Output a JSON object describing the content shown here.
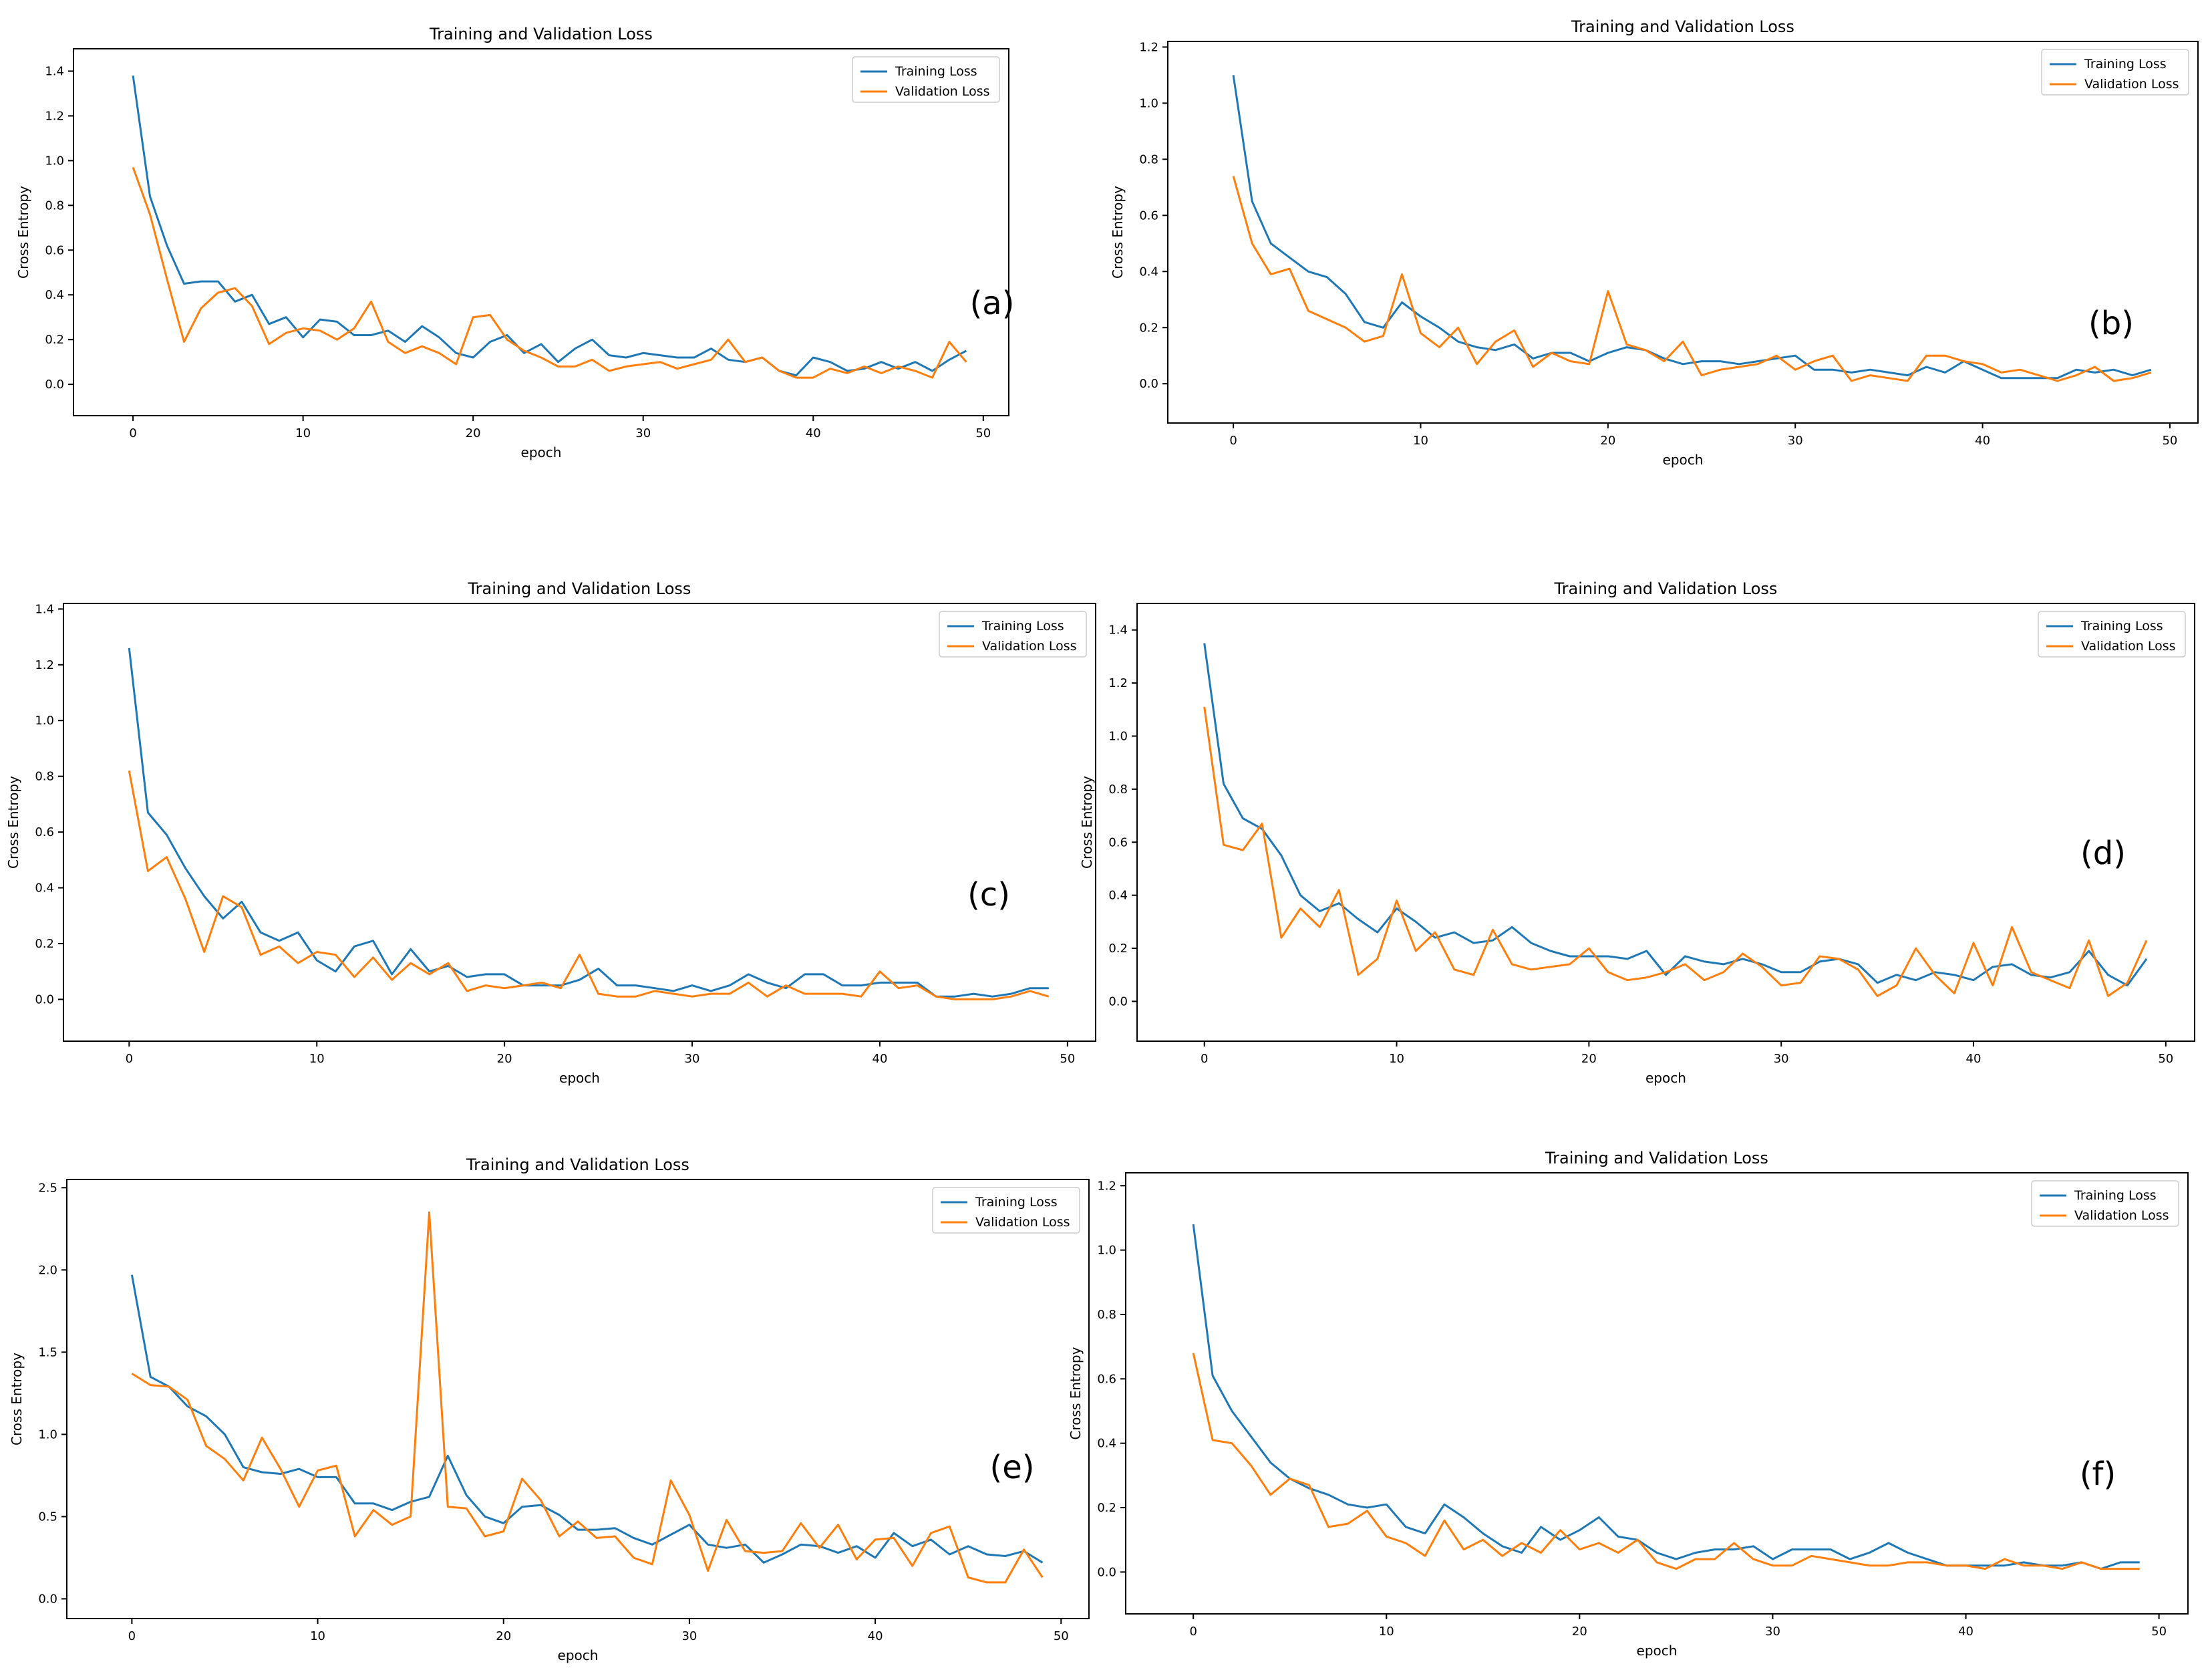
{
  "figure_label": "Six training/validation loss curves over 50 epochs, panels (a)–(f)",
  "colors": {
    "training": "#1f77b4",
    "validation": "#ff7f0e",
    "axis": "#000000"
  },
  "chart_data": [
    {
      "panel": "(a)",
      "type": "line",
      "title": "Training and Validation Loss",
      "xlabel": "epoch",
      "ylabel": "Cross Entropy",
      "xlim": [
        -3.5,
        51.5
      ],
      "ylim": [
        -0.14,
        1.5
      ],
      "xticks": [
        0,
        10,
        20,
        30,
        40,
        50
      ],
      "yticks": [
        0.0,
        0.2,
        0.4,
        0.6,
        0.8,
        1.0,
        1.2,
        1.4
      ],
      "ytick_labels": [
        "0.0",
        "0.2",
        "0.4",
        "0.6",
        "0.8",
        "1.0",
        "1.2",
        "1.4"
      ],
      "legend": "upper-right",
      "series": [
        {
          "name": "Training Loss",
          "values": [
            1.38,
            0.84,
            0.62,
            0.45,
            0.46,
            0.46,
            0.37,
            0.4,
            0.27,
            0.3,
            0.21,
            0.29,
            0.28,
            0.22,
            0.22,
            0.24,
            0.19,
            0.26,
            0.21,
            0.14,
            0.12,
            0.19,
            0.22,
            0.14,
            0.18,
            0.1,
            0.16,
            0.2,
            0.13,
            0.12,
            0.14,
            0.13,
            0.12,
            0.12,
            0.16,
            0.11,
            0.1,
            0.12,
            0.06,
            0.04,
            0.12,
            0.1,
            0.06,
            0.07,
            0.1,
            0.07,
            0.1,
            0.06,
            0.11,
            0.15
          ]
        },
        {
          "name": "Validation Loss",
          "values": [
            0.97,
            0.76,
            0.47,
            0.19,
            0.34,
            0.41,
            0.43,
            0.35,
            0.18,
            0.23,
            0.25,
            0.24,
            0.2,
            0.25,
            0.37,
            0.19,
            0.14,
            0.17,
            0.14,
            0.09,
            0.3,
            0.31,
            0.2,
            0.15,
            0.12,
            0.08,
            0.08,
            0.11,
            0.06,
            0.08,
            0.09,
            0.1,
            0.07,
            0.09,
            0.11,
            0.2,
            0.1,
            0.12,
            0.06,
            0.03,
            0.03,
            0.07,
            0.05,
            0.08,
            0.05,
            0.08,
            0.06,
            0.03,
            0.19,
            0.1
          ]
        }
      ]
    },
    {
      "panel": "(b)",
      "type": "line",
      "title": "Training and Validation Loss",
      "xlabel": "epoch",
      "ylabel": "Cross Entropy",
      "xlim": [
        -3.5,
        51.5
      ],
      "ylim": [
        -0.14,
        1.22
      ],
      "xticks": [
        0,
        10,
        20,
        30,
        40,
        50
      ],
      "yticks": [
        0.0,
        0.2,
        0.4,
        0.6,
        0.8,
        1.0,
        1.2
      ],
      "ytick_labels": [
        "0.0",
        "0.2",
        "0.4",
        "0.6",
        "0.8",
        "1.0",
        "1.2"
      ],
      "legend": "upper-right",
      "series": [
        {
          "name": "Training Loss",
          "values": [
            1.1,
            0.65,
            0.5,
            0.45,
            0.4,
            0.38,
            0.32,
            0.22,
            0.2,
            0.29,
            0.24,
            0.2,
            0.15,
            0.13,
            0.12,
            0.14,
            0.09,
            0.11,
            0.11,
            0.08,
            0.11,
            0.13,
            0.12,
            0.09,
            0.07,
            0.08,
            0.08,
            0.07,
            0.08,
            0.09,
            0.1,
            0.05,
            0.05,
            0.04,
            0.05,
            0.04,
            0.03,
            0.06,
            0.04,
            0.08,
            0.05,
            0.02,
            0.02,
            0.02,
            0.02,
            0.05,
            0.04,
            0.05,
            0.03,
            0.05
          ]
        },
        {
          "name": "Validation Loss",
          "values": [
            0.74,
            0.5,
            0.39,
            0.41,
            0.26,
            0.23,
            0.2,
            0.15,
            0.17,
            0.39,
            0.18,
            0.13,
            0.2,
            0.07,
            0.15,
            0.19,
            0.06,
            0.11,
            0.08,
            0.07,
            0.33,
            0.14,
            0.12,
            0.08,
            0.15,
            0.03,
            0.05,
            0.06,
            0.07,
            0.1,
            0.05,
            0.08,
            0.1,
            0.01,
            0.03,
            0.02,
            0.01,
            0.1,
            0.1,
            0.08,
            0.07,
            0.04,
            0.05,
            0.03,
            0.01,
            0.03,
            0.06,
            0.01,
            0.02,
            0.04
          ]
        }
      ]
    },
    {
      "panel": "(c)",
      "type": "line",
      "title": "Training and Validation Loss",
      "xlabel": "epoch",
      "ylabel": "Cross Entropy",
      "xlim": [
        -3.5,
        51.5
      ],
      "ylim": [
        -0.15,
        1.42
      ],
      "xticks": [
        0,
        10,
        20,
        30,
        40,
        50
      ],
      "yticks": [
        0.0,
        0.2,
        0.4,
        0.6,
        0.8,
        1.0,
        1.2,
        1.4
      ],
      "ytick_labels": [
        "0.0",
        "0.2",
        "0.4",
        "0.6",
        "0.8",
        "1.0",
        "1.2",
        "1.4"
      ],
      "legend": "upper-right",
      "series": [
        {
          "name": "Training Loss",
          "values": [
            1.26,
            0.67,
            0.59,
            0.47,
            0.37,
            0.29,
            0.35,
            0.24,
            0.21,
            0.24,
            0.14,
            0.1,
            0.19,
            0.21,
            0.09,
            0.18,
            0.1,
            0.12,
            0.08,
            0.09,
            0.09,
            0.05,
            0.05,
            0.05,
            0.07,
            0.11,
            0.05,
            0.05,
            0.04,
            0.03,
            0.05,
            0.03,
            0.05,
            0.09,
            0.06,
            0.04,
            0.09,
            0.09,
            0.05,
            0.05,
            0.06,
            0.06,
            0.06,
            0.01,
            0.01,
            0.02,
            0.01,
            0.02,
            0.04,
            0.04
          ]
        },
        {
          "name": "Validation Loss",
          "values": [
            0.82,
            0.46,
            0.51,
            0.36,
            0.17,
            0.37,
            0.33,
            0.16,
            0.19,
            0.13,
            0.17,
            0.16,
            0.08,
            0.15,
            0.07,
            0.13,
            0.09,
            0.13,
            0.03,
            0.05,
            0.04,
            0.05,
            0.06,
            0.04,
            0.16,
            0.02,
            0.01,
            0.01,
            0.03,
            0.02,
            0.01,
            0.02,
            0.02,
            0.06,
            0.01,
            0.05,
            0.02,
            0.02,
            0.02,
            0.01,
            0.1,
            0.04,
            0.05,
            0.01,
            0.0,
            0.0,
            0.0,
            0.01,
            0.03,
            0.01
          ]
        }
      ]
    },
    {
      "panel": "(d)",
      "type": "line",
      "title": "Training and Validation Loss",
      "xlabel": "epoch",
      "ylabel": "Cross Entropy",
      "xlim": [
        -3.5,
        51.5
      ],
      "ylim": [
        -0.15,
        1.5
      ],
      "xticks": [
        0,
        10,
        20,
        30,
        40,
        50
      ],
      "yticks": [
        0.0,
        0.2,
        0.4,
        0.6,
        0.8,
        1.0,
        1.2,
        1.4
      ],
      "ytick_labels": [
        "0.0",
        "0.2",
        "0.4",
        "0.6",
        "0.8",
        "1.0",
        "1.2",
        "1.4"
      ],
      "legend": "upper-right",
      "series": [
        {
          "name": "Training Loss",
          "values": [
            1.35,
            0.82,
            0.69,
            0.65,
            0.55,
            0.4,
            0.34,
            0.37,
            0.31,
            0.26,
            0.35,
            0.3,
            0.24,
            0.26,
            0.22,
            0.23,
            0.28,
            0.22,
            0.19,
            0.17,
            0.17,
            0.17,
            0.16,
            0.19,
            0.1,
            0.17,
            0.15,
            0.14,
            0.16,
            0.14,
            0.11,
            0.11,
            0.15,
            0.16,
            0.14,
            0.07,
            0.1,
            0.08,
            0.11,
            0.1,
            0.08,
            0.13,
            0.14,
            0.1,
            0.09,
            0.11,
            0.19,
            0.1,
            0.06,
            0.16
          ]
        },
        {
          "name": "Validation Loss",
          "values": [
            1.11,
            0.59,
            0.57,
            0.67,
            0.24,
            0.35,
            0.28,
            0.42,
            0.1,
            0.16,
            0.38,
            0.19,
            0.26,
            0.12,
            0.1,
            0.27,
            0.14,
            0.12,
            0.13,
            0.14,
            0.2,
            0.11,
            0.08,
            0.09,
            0.11,
            0.14,
            0.08,
            0.11,
            0.18,
            0.13,
            0.06,
            0.07,
            0.17,
            0.16,
            0.12,
            0.02,
            0.06,
            0.2,
            0.1,
            0.03,
            0.22,
            0.06,
            0.28,
            0.11,
            0.08,
            0.05,
            0.23,
            0.02,
            0.07,
            0.23
          ]
        }
      ]
    },
    {
      "panel": "(e)",
      "type": "line",
      "title": "Training and Validation Loss",
      "xlabel": "epoch",
      "ylabel": "Cross Entropy",
      "xlim": [
        -3.5,
        51.5
      ],
      "ylim": [
        -0.12,
        2.55
      ],
      "xticks": [
        0,
        10,
        20,
        30,
        40,
        50
      ],
      "yticks": [
        0.0,
        0.5,
        1.0,
        1.5,
        2.0,
        2.5
      ],
      "ytick_labels": [
        "0.0",
        "0.5",
        "1.0",
        "1.5",
        "2.0",
        "2.5"
      ],
      "legend": "upper-right",
      "series": [
        {
          "name": "Training Loss",
          "values": [
            1.97,
            1.35,
            1.29,
            1.17,
            1.11,
            1.0,
            0.8,
            0.77,
            0.76,
            0.79,
            0.74,
            0.74,
            0.58,
            0.58,
            0.54,
            0.59,
            0.62,
            0.87,
            0.63,
            0.5,
            0.46,
            0.56,
            0.57,
            0.51,
            0.42,
            0.42,
            0.43,
            0.37,
            0.33,
            0.39,
            0.45,
            0.33,
            0.31,
            0.33,
            0.22,
            0.27,
            0.33,
            0.32,
            0.28,
            0.32,
            0.25,
            0.4,
            0.32,
            0.36,
            0.27,
            0.32,
            0.27,
            0.26,
            0.29,
            0.22
          ]
        },
        {
          "name": "Validation Loss",
          "values": [
            1.37,
            1.3,
            1.29,
            1.21,
            0.93,
            0.85,
            0.72,
            0.98,
            0.79,
            0.56,
            0.78,
            0.81,
            0.38,
            0.54,
            0.45,
            0.5,
            2.35,
            0.56,
            0.55,
            0.38,
            0.41,
            0.73,
            0.6,
            0.38,
            0.47,
            0.37,
            0.38,
            0.25,
            0.21,
            0.72,
            0.51,
            0.17,
            0.48,
            0.29,
            0.28,
            0.29,
            0.46,
            0.31,
            0.45,
            0.24,
            0.36,
            0.37,
            0.2,
            0.4,
            0.44,
            0.13,
            0.1,
            0.1,
            0.3,
            0.13
          ]
        }
      ]
    },
    {
      "panel": "(f)",
      "type": "line",
      "title": "Training and Validation Loss",
      "xlabel": "epoch",
      "ylabel": "Cross Entropy",
      "xlim": [
        -3.5,
        51.5
      ],
      "ylim": [
        -0.13,
        1.24
      ],
      "xticks": [
        0,
        10,
        20,
        30,
        40,
        50
      ],
      "yticks": [
        0.0,
        0.2,
        0.4,
        0.6,
        0.8,
        1.0,
        1.2
      ],
      "ytick_labels": [
        "0.0",
        "0.2",
        "0.4",
        "0.6",
        "0.8",
        "1.0",
        "1.2"
      ],
      "legend": "upper-right",
      "series": [
        {
          "name": "Training Loss",
          "values": [
            1.08,
            0.61,
            0.5,
            0.42,
            0.34,
            0.29,
            0.26,
            0.24,
            0.21,
            0.2,
            0.21,
            0.14,
            0.12,
            0.21,
            0.17,
            0.12,
            0.08,
            0.06,
            0.14,
            0.1,
            0.13,
            0.17,
            0.11,
            0.1,
            0.06,
            0.04,
            0.06,
            0.07,
            0.07,
            0.08,
            0.04,
            0.07,
            0.07,
            0.07,
            0.04,
            0.06,
            0.09,
            0.06,
            0.04,
            0.02,
            0.02,
            0.02,
            0.02,
            0.03,
            0.02,
            0.02,
            0.03,
            0.01,
            0.03,
            0.03
          ]
        },
        {
          "name": "Validation Loss",
          "values": [
            0.68,
            0.41,
            0.4,
            0.33,
            0.24,
            0.29,
            0.27,
            0.14,
            0.15,
            0.19,
            0.11,
            0.09,
            0.05,
            0.16,
            0.07,
            0.1,
            0.05,
            0.09,
            0.06,
            0.13,
            0.07,
            0.09,
            0.06,
            0.1,
            0.03,
            0.01,
            0.04,
            0.04,
            0.09,
            0.04,
            0.02,
            0.02,
            0.05,
            0.04,
            0.03,
            0.02,
            0.02,
            0.03,
            0.03,
            0.02,
            0.02,
            0.01,
            0.04,
            0.02,
            0.02,
            0.01,
            0.03,
            0.01,
            0.01,
            0.01
          ]
        }
      ]
    }
  ]
}
